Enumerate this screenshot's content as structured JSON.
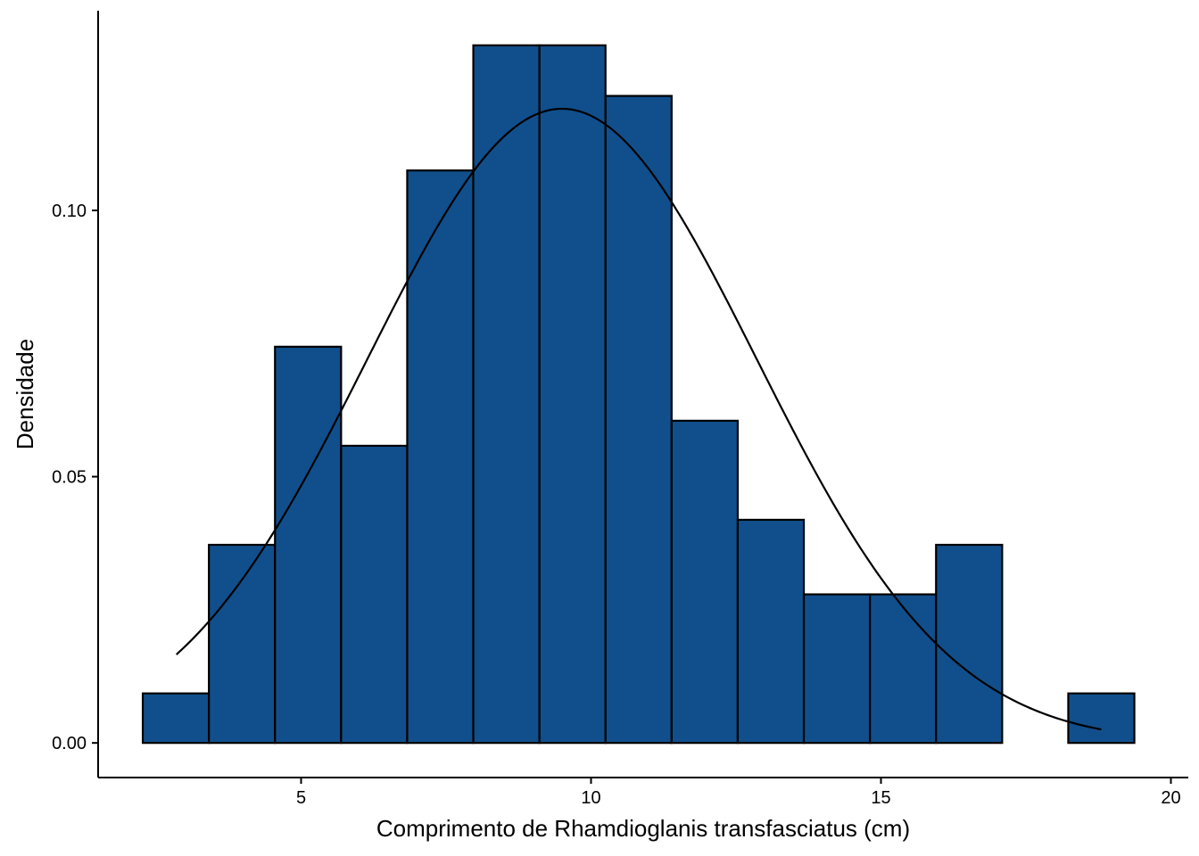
{
  "chart_data": {
    "type": "bar",
    "subtype": "histogram-with-density-curve",
    "xlabel": "Comprimento de Rhamdioglanis transfasciatus (cm)",
    "ylabel": "Densidade",
    "xlim": [
      1.5,
      20.3
    ],
    "ylim": [
      -0.0065,
      0.1375
    ],
    "x_ticks": [
      5,
      10,
      15,
      20
    ],
    "y_ticks": [
      0.0,
      0.05,
      0.1
    ],
    "x_tick_labels": [
      "5",
      "10",
      "15",
      "20"
    ],
    "y_tick_labels": [
      "0.00",
      "0.05",
      "0.10"
    ],
    "grid": false,
    "bar_fill": "#114F8C",
    "bar_edge": "#000000",
    "bins": [
      {
        "x0": 2.27,
        "x1": 3.41,
        "density": 0.0093
      },
      {
        "x0": 3.41,
        "x1": 4.55,
        "density": 0.0372
      },
      {
        "x0": 4.55,
        "x1": 5.69,
        "density": 0.0744
      },
      {
        "x0": 5.69,
        "x1": 6.83,
        "density": 0.0558
      },
      {
        "x0": 6.83,
        "x1": 7.97,
        "density": 0.1075
      },
      {
        "x0": 7.97,
        "x1": 9.11,
        "density": 0.131
      },
      {
        "x0": 9.11,
        "x1": 10.25,
        "density": 0.131
      },
      {
        "x0": 10.25,
        "x1": 11.39,
        "density": 0.1215
      },
      {
        "x0": 11.39,
        "x1": 12.53,
        "density": 0.0605
      },
      {
        "x0": 12.53,
        "x1": 13.67,
        "density": 0.0419
      },
      {
        "x0": 13.67,
        "x1": 14.81,
        "density": 0.0279
      },
      {
        "x0": 14.81,
        "x1": 15.95,
        "density": 0.0279
      },
      {
        "x0": 15.95,
        "x1": 17.09,
        "density": 0.0372
      },
      {
        "x0": 17.09,
        "x1": 18.23,
        "density": 0.0
      },
      {
        "x0": 18.23,
        "x1": 19.37,
        "density": 0.0093
      }
    ],
    "density_curve": {
      "type": "normal",
      "mean": 9.5,
      "sd": 3.35,
      "x_range": [
        2.85,
        18.8
      ],
      "color": "#000000"
    }
  }
}
